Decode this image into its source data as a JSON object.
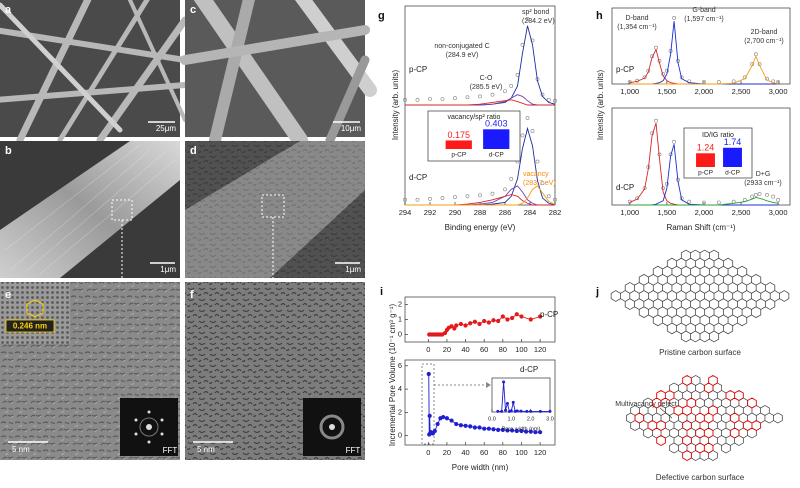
{
  "figure": {
    "panels": [
      {
        "label": "a",
        "scale_bar": "25μm"
      },
      {
        "label": "b",
        "scale_bar": "1μm"
      },
      {
        "label": "c",
        "scale_bar": "10μm"
      },
      {
        "label": "d",
        "scale_bar": "1μm"
      },
      {
        "label": "e",
        "scale_bar": "5 nm",
        "lattice": "0.246 nm",
        "inset": "FFT"
      },
      {
        "label": "f",
        "scale_bar": "5 nm",
        "inset": "FFT"
      },
      {
        "label": "g"
      },
      {
        "label": "h"
      },
      {
        "label": "i"
      },
      {
        "label": "j",
        "top_caption": "Pristine carbon surface",
        "bottom_caption": "Defective carbon surface",
        "annotation": "Multivacancy defect"
      }
    ]
  },
  "chart_data": [
    {
      "type": "line",
      "sample": "p-CP",
      "ylabel": "Intensity (arb. units)",
      "xlim": [
        294,
        282
      ],
      "ylim": [
        0,
        1.15
      ],
      "x": [
        294,
        293,
        292,
        291,
        290,
        289,
        288,
        287,
        286,
        285.5,
        285,
        284.6,
        284.2,
        283.8,
        283.4,
        283,
        282.5,
        282
      ],
      "series": [
        {
          "color": "#808080",
          "mode": "markers",
          "values": [
            0.06,
            0.06,
            0.07,
            0.07,
            0.08,
            0.09,
            0.1,
            0.12,
            0.16,
            0.22,
            0.35,
            0.7,
            1.0,
            0.75,
            0.3,
            0.12,
            0.06,
            0.05
          ]
        },
        {
          "color": "#1c2fa0",
          "mode": "line",
          "values": [
            0,
            0,
            0,
            0,
            0,
            0,
            0,
            0.01,
            0.03,
            0.08,
            0.22,
            0.6,
            0.92,
            0.7,
            0.28,
            0.1,
            0.03,
            0.01
          ]
        },
        {
          "color": "#7b3fb5",
          "mode": "line",
          "values": [
            0,
            0,
            0,
            0,
            0,
            0,
            0,
            0.01,
            0.04,
            0.08,
            0.12,
            0.1,
            0.05,
            0.01,
            0,
            0,
            0,
            0
          ]
        },
        {
          "color": "#d62728",
          "mode": "line",
          "values": [
            0,
            0,
            0,
            0,
            0,
            0,
            0.01,
            0.03,
            0.05,
            0.06,
            0.04,
            0.02,
            0,
            0,
            0,
            0,
            0,
            0
          ]
        }
      ],
      "annotations": [
        [
          "non-conjugated C",
          "(284.9 eV)"
        ],
        [
          "sp² bond",
          "(284.2 eV)"
        ],
        [
          "C-O",
          "(285.5 eV)"
        ]
      ]
    },
    {
      "type": "line",
      "sample": "d-CP",
      "xlabel": "Binding energy (eV)",
      "xlim": [
        294,
        282
      ],
      "ylim": [
        0,
        1.15
      ],
      "xticks": [
        294,
        292,
        290,
        288,
        286,
        284,
        282
      ],
      "x": [
        294,
        293,
        292,
        291,
        290,
        289,
        288,
        287,
        286,
        285.5,
        285,
        284.6,
        284.2,
        283.8,
        283.4,
        283,
        282.5,
        282
      ],
      "series": [
        {
          "color": "#808080",
          "mode": "markers",
          "values": [
            0.06,
            0.06,
            0.07,
            0.08,
            0.09,
            0.1,
            0.11,
            0.13,
            0.18,
            0.3,
            0.5,
            0.8,
            1.0,
            0.85,
            0.5,
            0.25,
            0.1,
            0.06
          ]
        },
        {
          "color": "#1c2fa0",
          "mode": "line",
          "values": [
            0,
            0,
            0,
            0,
            0,
            0,
            0,
            0.01,
            0.03,
            0.1,
            0.3,
            0.65,
            0.88,
            0.68,
            0.28,
            0.08,
            0.02,
            0
          ]
        },
        {
          "color": "#7b3fb5",
          "mode": "line",
          "values": [
            0,
            0,
            0,
            0,
            0,
            0,
            0.01,
            0.03,
            0.1,
            0.18,
            0.22,
            0.15,
            0.06,
            0.02,
            0,
            0,
            0,
            0
          ]
        },
        {
          "color": "#d62728",
          "mode": "line",
          "values": [
            0,
            0,
            0,
            0,
            0,
            0.01,
            0.03,
            0.06,
            0.1,
            0.12,
            0.1,
            0.05,
            0.02,
            0,
            0,
            0,
            0,
            0
          ]
        },
        {
          "color": "#f39c12",
          "mode": "line",
          "values": [
            0,
            0,
            0,
            0,
            0,
            0,
            0,
            0,
            0,
            0,
            0,
            0.02,
            0.08,
            0.18,
            0.22,
            0.14,
            0.04,
            0.01
          ]
        }
      ],
      "annotations": [
        [
          "vacancy",
          "(283.7 eV)"
        ]
      ]
    },
    {
      "type": "bar",
      "title": "vacancy/sp² ratio",
      "categories": [
        "p-CP",
        "d-CP"
      ],
      "values": [
        0.175,
        0.403
      ],
      "colors": [
        "#ff1a1a",
        "#1a1aff"
      ],
      "ylim": [
        0,
        0.45
      ]
    },
    {
      "type": "line",
      "sample": "p-CP",
      "ylabel": "Intensity (arb. units)",
      "xlim": [
        760,
        3160
      ],
      "ylim": [
        0,
        1.15
      ],
      "xticks": [
        {
          "value": 1000,
          "label": "1,000"
        },
        {
          "value": 1500,
          "label": "1,500"
        },
        {
          "value": 2000,
          "label": "2,000"
        },
        {
          "value": 2500,
          "label": "2,500"
        },
        {
          "value": 3000,
          "label": "3,000"
        }
      ],
      "x": [
        1000,
        1100,
        1200,
        1250,
        1300,
        1354,
        1400,
        1450,
        1500,
        1550,
        1597,
        1650,
        1700,
        1800,
        2000,
        2200,
        2400,
        2550,
        2650,
        2700,
        2750,
        2850,
        2933,
        3000
      ],
      "series": [
        {
          "color": "#808080",
          "mode": "markers",
          "values": [
            0.03,
            0.05,
            0.1,
            0.2,
            0.42,
            0.55,
            0.35,
            0.15,
            0.2,
            0.5,
            1.0,
            0.35,
            0.1,
            0.04,
            0.03,
            0.03,
            0.04,
            0.1,
            0.3,
            0.45,
            0.3,
            0.08,
            0.04,
            0.03
          ]
        },
        {
          "color": "#d62728",
          "mode": "line",
          "values": [
            0.02,
            0.04,
            0.09,
            0.18,
            0.4,
            0.52,
            0.32,
            0.12,
            0.05,
            0.02,
            0.01,
            0,
            0,
            0,
            0,
            0,
            0,
            0,
            0,
            0,
            0,
            0,
            0,
            0
          ]
        },
        {
          "color": "#1c2fd0",
          "mode": "line",
          "values": [
            0,
            0,
            0,
            0,
            0,
            0.01,
            0.02,
            0.05,
            0.15,
            0.45,
            0.95,
            0.32,
            0.08,
            0.02,
            0,
            0,
            0,
            0,
            0,
            0,
            0,
            0,
            0,
            0
          ]
        },
        {
          "color": "#f39c12",
          "mode": "line",
          "values": [
            0,
            0,
            0,
            0,
            0,
            0,
            0,
            0,
            0,
            0,
            0,
            0,
            0,
            0,
            0,
            0,
            0.01,
            0.08,
            0.28,
            0.42,
            0.28,
            0.06,
            0.02,
            0
          ]
        }
      ],
      "annotations": [
        [
          "D-band",
          "(1,354 cm⁻¹)"
        ],
        [
          "G-band",
          "(1,597 cm⁻¹)"
        ],
        [
          "2D-band",
          "(2,700 cm⁻¹)"
        ]
      ]
    },
    {
      "type": "line",
      "sample": "d-CP",
      "xlabel": "Raman Shift (cm⁻¹)",
      "xlim": [
        760,
        3160
      ],
      "ylim": [
        0,
        1.15
      ],
      "xticks": [
        {
          "value": 1000,
          "label": "1,000"
        },
        {
          "value": 1500,
          "label": "1,500"
        },
        {
          "value": 2000,
          "label": "2,000"
        },
        {
          "value": 2500,
          "label": "2,500"
        },
        {
          "value": 3000,
          "label": "3,000"
        }
      ],
      "x": [
        1000,
        1100,
        1200,
        1250,
        1300,
        1354,
        1400,
        1450,
        1500,
        1550,
        1597,
        1650,
        1700,
        1800,
        2000,
        2200,
        2400,
        2550,
        2650,
        2700,
        2750,
        2850,
        2933,
        3000
      ],
      "series": [
        {
          "color": "#808080",
          "mode": "markers",
          "values": [
            0.04,
            0.08,
            0.2,
            0.45,
            0.85,
            1.0,
            0.6,
            0.2,
            0.25,
            0.6,
            0.75,
            0.3,
            0.08,
            0.04,
            0.03,
            0.03,
            0.04,
            0.06,
            0.1,
            0.12,
            0.13,
            0.12,
            0.1,
            0.06
          ]
        },
        {
          "color": "#d62728",
          "mode": "line",
          "values": [
            0.03,
            0.07,
            0.19,
            0.43,
            0.82,
            0.97,
            0.55,
            0.15,
            0.05,
            0.02,
            0.01,
            0,
            0,
            0,
            0,
            0,
            0,
            0,
            0,
            0,
            0,
            0,
            0,
            0
          ]
        },
        {
          "color": "#1c2fd0",
          "mode": "line",
          "values": [
            0,
            0,
            0,
            0,
            0,
            0.01,
            0.03,
            0.05,
            0.2,
            0.58,
            0.72,
            0.28,
            0.06,
            0.01,
            0,
            0,
            0,
            0,
            0,
            0,
            0,
            0,
            0,
            0
          ]
        },
        {
          "color": "#2ca02c",
          "mode": "line",
          "values": [
            0,
            0,
            0,
            0,
            0,
            0,
            0,
            0,
            0,
            0,
            0,
            0,
            0,
            0,
            0,
            0,
            0.02,
            0.04,
            0.07,
            0.09,
            0.08,
            0.05,
            0.03,
            0.02
          ]
        }
      ],
      "annotations": [
        [
          "D+G",
          "(2933 cm⁻¹)"
        ]
      ]
    },
    {
      "type": "bar",
      "title": "ID/IG ratio",
      "categories": [
        "p-CP",
        "d-CP"
      ],
      "values": [
        1.24,
        1.74
      ],
      "colors": [
        "#ff1a1a",
        "#1a1aff"
      ],
      "ylim": [
        0,
        1.9
      ]
    },
    {
      "type": "line",
      "sample": "p-CP",
      "ylabel": "Incremental Pore Volume (10⁻¹ cm³ g⁻¹)",
      "xlim": [
        -25,
        136
      ],
      "ylim": [
        -0.5,
        2.5
      ],
      "xticks": [
        0,
        20,
        40,
        60,
        80,
        100,
        120
      ],
      "yticks": [
        0,
        1,
        2
      ],
      "x": [
        1,
        3,
        5,
        7,
        9,
        11,
        13,
        15,
        18,
        20,
        22,
        25,
        28,
        30,
        35,
        40,
        45,
        50,
        55,
        60,
        65,
        70,
        75,
        80,
        85,
        90,
        95,
        100,
        110,
        120
      ],
      "series": [
        {
          "color": "#e31a1c",
          "mode": "line+markers",
          "values": [
            0,
            0,
            0,
            0,
            0,
            0,
            0,
            0,
            0.1,
            0.3,
            0.45,
            0.55,
            0.4,
            0.6,
            0.7,
            0.6,
            0.75,
            0.85,
            0.7,
            0.9,
            0.8,
            0.95,
            0.9,
            1.2,
            1.0,
            1.1,
            1.35,
            1.2,
            1.0,
            1.2
          ]
        }
      ]
    },
    {
      "type": "line",
      "sample": "d-CP",
      "xlabel": "Pore width (nm)",
      "xlim": [
        -25,
        136
      ],
      "ylim": [
        -0.8,
        6.5
      ],
      "xticks": [
        0,
        20,
        40,
        60,
        80,
        100,
        120
      ],
      "yticks": [
        0,
        2,
        4,
        6
      ],
      "x": [
        0.5,
        1,
        1.5,
        2,
        3,
        5,
        7,
        10,
        13,
        16,
        20,
        25,
        30,
        35,
        40,
        45,
        50,
        55,
        60,
        65,
        70,
        75,
        80,
        85,
        90,
        95,
        100,
        105,
        110,
        115,
        120
      ],
      "series": [
        {
          "color": "#2020d0",
          "mode": "line+markers",
          "values": [
            5.3,
            0.1,
            1.7,
            0.2,
            0.3,
            0.2,
            0.4,
            1.0,
            1.5,
            1.6,
            1.5,
            1.3,
            1.0,
            0.9,
            0.85,
            0.8,
            0.7,
            0.7,
            0.6,
            0.6,
            0.55,
            0.5,
            0.5,
            0.45,
            0.45,
            0.4,
            0.4,
            0.35,
            0.35,
            0.3,
            0.3
          ]
        }
      ]
    },
    {
      "type": "line",
      "xlabel": "Pore width (nm)",
      "xlim": [
        0,
        3
      ],
      "ylim": [
        0,
        6
      ],
      "xticks": [
        {
          "value": 0,
          "label": "0.0"
        },
        {
          "value": 1,
          "label": "1.0"
        },
        {
          "value": 2,
          "label": "2.0"
        },
        {
          "value": 3,
          "label": "3.0"
        }
      ],
      "x": [
        0.3,
        0.5,
        0.6,
        0.7,
        0.8,
        0.9,
        1.0,
        1.1,
        1.2,
        1.3,
        1.5,
        1.8,
        2.0,
        2.5,
        3.0
      ],
      "series": [
        {
          "color": "#2020d0",
          "mode": "line+markers",
          "values": [
            0.1,
            0.1,
            5.3,
            0.3,
            1.5,
            0.1,
            0.2,
            1.7,
            0.1,
            0.2,
            0.15,
            0.1,
            0.1,
            0.1,
            0.1
          ]
        }
      ]
    }
  ]
}
